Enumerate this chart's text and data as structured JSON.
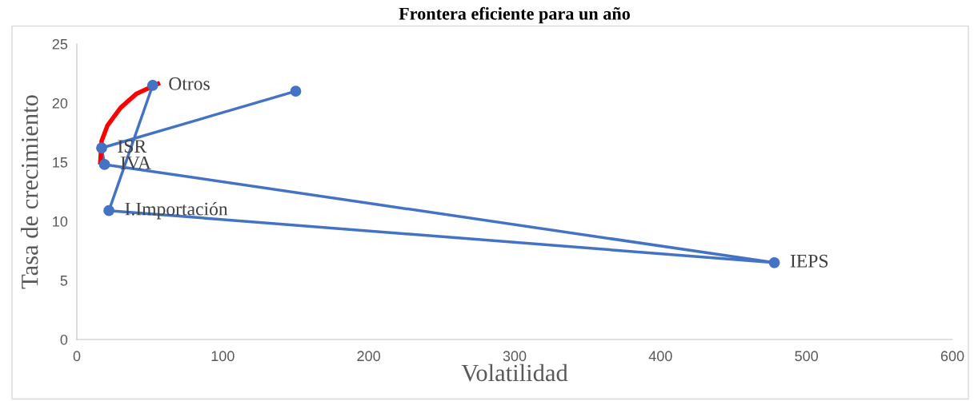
{
  "chart_data": {
    "type": "line",
    "title": "Frontera eficiente para un año",
    "xlabel": "Volatilidad",
    "ylabel": "Tasa de crecimiento",
    "xlim": [
      0,
      600
    ],
    "xticks": [
      0,
      100,
      200,
      300,
      400,
      500,
      600
    ],
    "ylim": [
      0,
      25
    ],
    "yticks": [
      0,
      5,
      10,
      15,
      20,
      25
    ],
    "grid": false,
    "legend": false,
    "marker": "circle",
    "series": [
      {
        "type": "scatter",
        "line_style": "solid",
        "color": "#4472c4",
        "x": [
          150,
          17,
          19,
          478,
          22,
          52
        ],
        "values": [
          21.0,
          16.2,
          14.8,
          6.5,
          10.9,
          21.5
        ]
      },
      {
        "color": "#ff0000",
        "marker": "none",
        "x": [
          16,
          17,
          21,
          30,
          41,
          57
        ],
        "values": [
          14.8,
          16.8,
          18.1,
          19.6,
          20.8,
          21.7
        ]
      }
    ],
    "annotations": [
      {
        "text": "ISR",
        "x": 17,
        "y": 16.2
      },
      {
        "text": "IVA",
        "x": 19,
        "y": 14.8
      },
      {
        "text": "IEPS",
        "x": 478,
        "y": 6.5
      },
      {
        "text": "I.Importación",
        "x": 22,
        "y": 10.9
      },
      {
        "text": "Otros",
        "x": 52,
        "y": 21.5
      }
    ]
  }
}
